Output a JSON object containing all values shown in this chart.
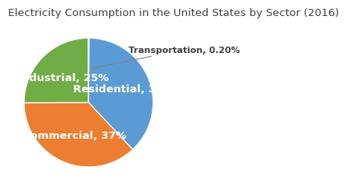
{
  "title": "Electricity Consumption in the United States by Sector (2016)",
  "labels": [
    "Residential",
    "Commercial",
    "Industrial",
    "Transportation"
  ],
  "values": [
    38,
    37,
    25,
    0.2
  ],
  "colors": [
    "#5B9BD5",
    "#ED7D31",
    "#70AD47",
    "#C5E0B4"
  ],
  "startangle": 89.64,
  "title_fontsize": 9.5,
  "title_color": "#404040",
  "inner_label_color": "white",
  "outer_label_color": "#404040",
  "inner_label_fontsize": 9.5,
  "outer_label_fontsize": 8.0,
  "label_radii": {
    "Residential": 0.58,
    "Commercial": 0.55,
    "Industrial": 0.55
  }
}
